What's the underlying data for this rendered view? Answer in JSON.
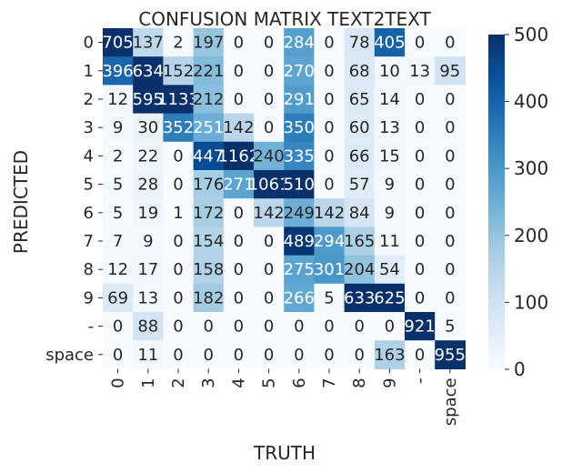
{
  "chart_data": {
    "type": "heatmap",
    "title": "CONFUSION MATRIX TEXT2TEXT",
    "xlabel": "TRUTH",
    "ylabel": "PREDICTED",
    "x_categories": [
      "0",
      "1",
      "2",
      "3",
      "4",
      "5",
      "6",
      "7",
      "8",
      "9",
      "-",
      "space"
    ],
    "y_categories": [
      "0",
      "1",
      "2",
      "3",
      "4",
      "5",
      "6",
      "7",
      "8",
      "9",
      "-",
      "space"
    ],
    "values": [
      [
        705,
        137,
        2,
        197,
        0,
        0,
        284,
        0,
        78,
        405,
        0,
        0
      ],
      [
        396,
        634,
        152,
        221,
        0,
        0,
        270,
        0,
        68,
        10,
        13,
        95
      ],
      [
        12,
        595,
        1133,
        212,
        0,
        0,
        291,
        0,
        65,
        14,
        0,
        0
      ],
      [
        9,
        30,
        352,
        251,
        142,
        0,
        350,
        0,
        60,
        13,
        0,
        0
      ],
      [
        2,
        22,
        0,
        447,
        1162,
        240,
        335,
        0,
        66,
        15,
        0,
        0
      ],
      [
        5,
        28,
        0,
        176,
        271,
        1061,
        510,
        0,
        57,
        9,
        0,
        0
      ],
      [
        5,
        19,
        1,
        172,
        0,
        142,
        249,
        142,
        84,
        9,
        0,
        0
      ],
      [
        7,
        9,
        0,
        154,
        0,
        0,
        489,
        294,
        165,
        11,
        0,
        0
      ],
      [
        12,
        17,
        0,
        158,
        0,
        0,
        275,
        301,
        204,
        54,
        0,
        0
      ],
      [
        69,
        13,
        0,
        182,
        0,
        0,
        266,
        5,
        633,
        625,
        0,
        0
      ],
      [
        0,
        88,
        0,
        0,
        0,
        0,
        0,
        0,
        0,
        0,
        921,
        5
      ],
      [
        0,
        11,
        0,
        0,
        0,
        0,
        0,
        0,
        0,
        163,
        0,
        955
      ]
    ],
    "colorbar": {
      "min": 0,
      "max": 500,
      "ticks": [
        0,
        100,
        200,
        300,
        400,
        500
      ]
    },
    "colormap": "Blues",
    "colors": {
      "low": "#f7fbff",
      "high": "#08306b"
    }
  }
}
